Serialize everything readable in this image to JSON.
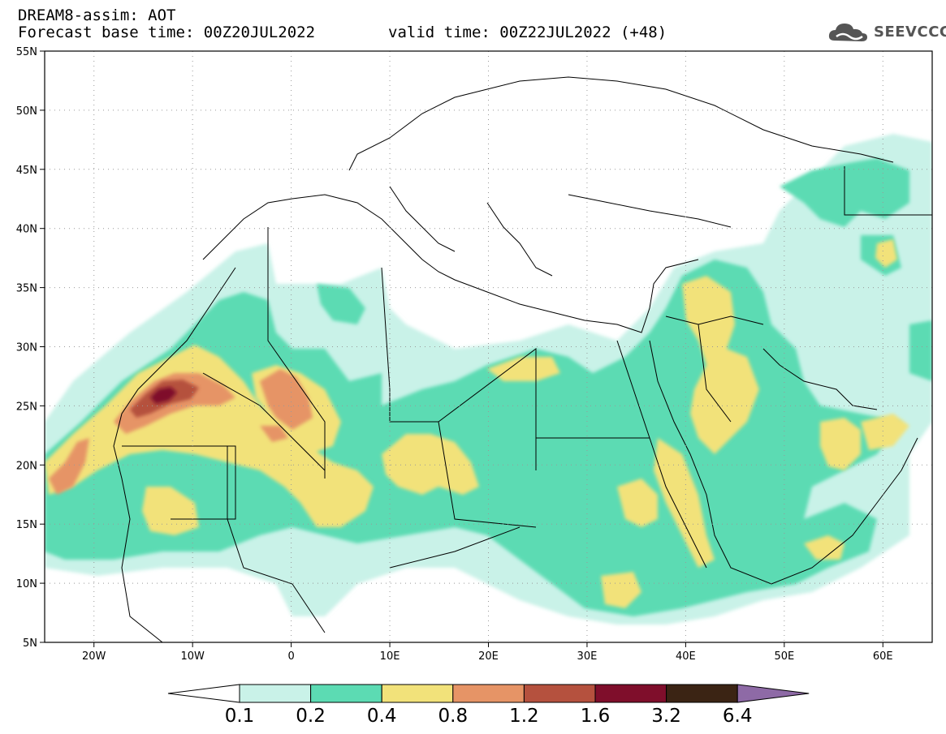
{
  "header": {
    "model_line": "DREAM8-assim: AOT",
    "base_time_line": "Forecast base time: 00Z20JUL2022",
    "valid_time_line": "valid time: 00Z22JUL2022 (+48)",
    "logo_text": "SEEVCCC"
  },
  "chart_data": {
    "type": "map",
    "variable": "AOT",
    "lon_range": [
      -25,
      65
    ],
    "lat_range": [
      5,
      55
    ],
    "lon_ticks": [
      "20W",
      "10W",
      "0",
      "10E",
      "20E",
      "30E",
      "40E",
      "50E",
      "60E"
    ],
    "lon_tick_values": [
      -20,
      -10,
      0,
      10,
      20,
      30,
      40,
      50,
      60
    ],
    "lat_ticks": [
      "5N",
      "10N",
      "15N",
      "20N",
      "25N",
      "30N",
      "35N",
      "40N",
      "45N",
      "50N",
      "55N"
    ],
    "lat_tick_values": [
      5,
      10,
      15,
      20,
      25,
      30,
      35,
      40,
      45,
      50,
      55
    ],
    "grid": "dotted",
    "colorbar": {
      "labels": [
        "0.1",
        "0.2",
        "0.4",
        "0.8",
        "1.2",
        "1.6",
        "3.2",
        "6.4"
      ],
      "colors": [
        "#c9f2e8",
        "#5cdbb3",
        "#f2e27a",
        "#e69466",
        "#b5513e",
        "#7f0e2b",
        "#3b2414",
        "#8e6aa6"
      ],
      "below_color": "#ffffff"
    }
  }
}
